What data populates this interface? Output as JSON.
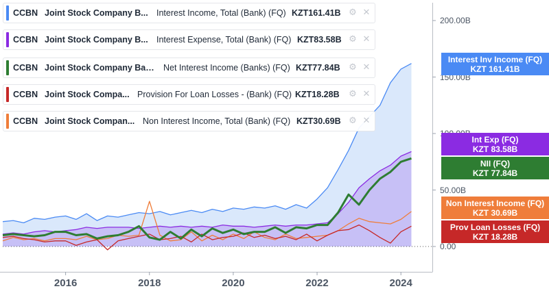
{
  "legend": [
    {
      "ticker": "CCBN",
      "company": "Joint Stock Company B...",
      "metric": "Interest Income, Total (Bank) (FQ)",
      "value": "KZT161.41B",
      "color": "#4a8af4"
    },
    {
      "ticker": "CCBN",
      "company": "Joint Stock Company B...",
      "metric": "Interest Expense, Total (Bank) (FQ)",
      "value": "KZT83.58B",
      "color": "#8b2be2"
    },
    {
      "ticker": "CCBN",
      "company": "Joint Stock Company Ban...",
      "metric": "Net Interest Income (Banks) (FQ)",
      "value": "KZT77.84B",
      "color": "#2e7d32"
    },
    {
      "ticker": "CCBN",
      "company": "Joint Stock Compa...",
      "metric": "Provision For Loan Losses - (Bank) (FQ)",
      "value": "KZT18.28B",
      "color": "#c62828"
    },
    {
      "ticker": "CCBN",
      "company": "Joint Stock Compan...",
      "metric": "Non Interest Income, Total (Bank) (FQ)",
      "value": "KZT30.69B",
      "color": "#ef7d3a"
    }
  ],
  "icons": {
    "settings": "gear-hand-icon",
    "close": "close-icon"
  },
  "badges": [
    {
      "line1": "Interest Inv Income (FQ)",
      "line2": "KZT 161.41B",
      "color": "#4a8af4",
      "value": 161.41
    },
    {
      "line1": "Int Exp (FQ)",
      "line2": "KZT 83.58B",
      "color": "#8b2be2",
      "value": 83.58
    },
    {
      "line1": "NII (FQ)",
      "line2": "KZT 77.84B",
      "color": "#2e7d32",
      "value": 77.84
    },
    {
      "line1": "Non Interest Income (FQ)",
      "line2": "KZT 30.69B",
      "color": "#ef7d3a",
      "value": 30.69
    },
    {
      "line1": "Prov Loan Losses (FQ)",
      "line2": "KZT 18.28B",
      "color": "#c62828",
      "value": 18.28
    }
  ],
  "chart_data": {
    "type": "area",
    "x_tick_labels": [
      "2016",
      "2018",
      "2020",
      "2022",
      "2024"
    ],
    "x_ticks": [
      2016,
      2018,
      2020,
      2022,
      2024
    ],
    "y_tick_labels": [
      "0.00",
      "50.00B",
      "100.00B",
      "150.00B",
      "200.00B"
    ],
    "y_ticks": [
      0,
      50,
      100,
      150,
      200
    ],
    "xlim": [
      2014.5,
      2024.75
    ],
    "ylim": [
      -2,
      212
    ],
    "grid": false,
    "x": [
      2014.5,
      2014.75,
      2015.0,
      2015.25,
      2015.5,
      2015.75,
      2016.0,
      2016.25,
      2016.5,
      2016.75,
      2017.0,
      2017.25,
      2017.5,
      2017.75,
      2018.0,
      2018.25,
      2018.5,
      2018.75,
      2019.0,
      2019.25,
      2019.5,
      2019.75,
      2020.0,
      2020.25,
      2020.5,
      2020.75,
      2021.0,
      2021.25,
      2021.5,
      2021.75,
      2022.0,
      2022.25,
      2022.5,
      2022.75,
      2023.0,
      2023.25,
      2023.5,
      2023.75,
      2024.0,
      2024.25
    ],
    "series": [
      {
        "name": "Interest Income, Total (Bank) (FQ)",
        "color": "#4a8af4",
        "fill": "#d6e6fb",
        "values": [
          22,
          23,
          21,
          25,
          24,
          26,
          27,
          24,
          29,
          23,
          27,
          26,
          28,
          30,
          29,
          31,
          28,
          30,
          32,
          30,
          33,
          31,
          34,
          33,
          35,
          34,
          36,
          33,
          37,
          34,
          42,
          52,
          68,
          85,
          105,
          115,
          125,
          145,
          157,
          162
        ]
      },
      {
        "name": "Interest Expense, Total (Bank) (FQ)",
        "color": "#8b2be2",
        "fill": "#c3b8f4",
        "values": [
          11,
          12,
          11,
          13,
          14,
          13,
          14,
          15,
          17,
          16,
          17,
          17,
          17,
          16,
          17,
          18,
          17,
          18,
          17,
          18,
          17,
          19,
          18,
          18,
          17,
          18,
          19,
          18,
          19,
          19,
          20,
          21,
          29,
          39,
          52,
          60,
          67,
          72,
          80,
          84
        ]
      },
      {
        "name": "Net Interest Income (Banks) (FQ)",
        "color": "#2e7d32",
        "values": [
          10,
          11,
          10,
          9,
          10,
          13,
          13,
          10,
          11,
          7,
          9,
          10,
          13,
          18,
          8,
          6,
          13,
          7,
          15,
          9,
          16,
          12,
          15,
          11,
          13,
          13,
          17,
          12,
          17,
          16,
          19,
          19,
          30,
          46,
          37,
          50,
          60,
          66,
          75,
          78
        ]
      },
      {
        "name": "Provision For Loan Losses - (Bank) (FQ)",
        "color": "#c62828",
        "values": [
          8,
          9,
          7,
          6,
          4,
          5,
          5,
          1,
          4,
          6,
          -3,
          5,
          7,
          9,
          11,
          6,
          7,
          9,
          4,
          11,
          6,
          8,
          9,
          12,
          8,
          10,
          7,
          9,
          6,
          11,
          5,
          10,
          14,
          15,
          19,
          14,
          8,
          3,
          13,
          18
        ]
      },
      {
        "name": "Non Interest Income, Total (Bank) (FQ)",
        "color": "#ef7d3a",
        "values": [
          5,
          8,
          6,
          7,
          5,
          7,
          7,
          6,
          9,
          6,
          7,
          10,
          9,
          10,
          40,
          10,
          5,
          6,
          13,
          5,
          10,
          6,
          11,
          7,
          13,
          8,
          6,
          11,
          7,
          8,
          9,
          10,
          14,
          20,
          25,
          22,
          21,
          20,
          24,
          31
        ]
      }
    ]
  }
}
